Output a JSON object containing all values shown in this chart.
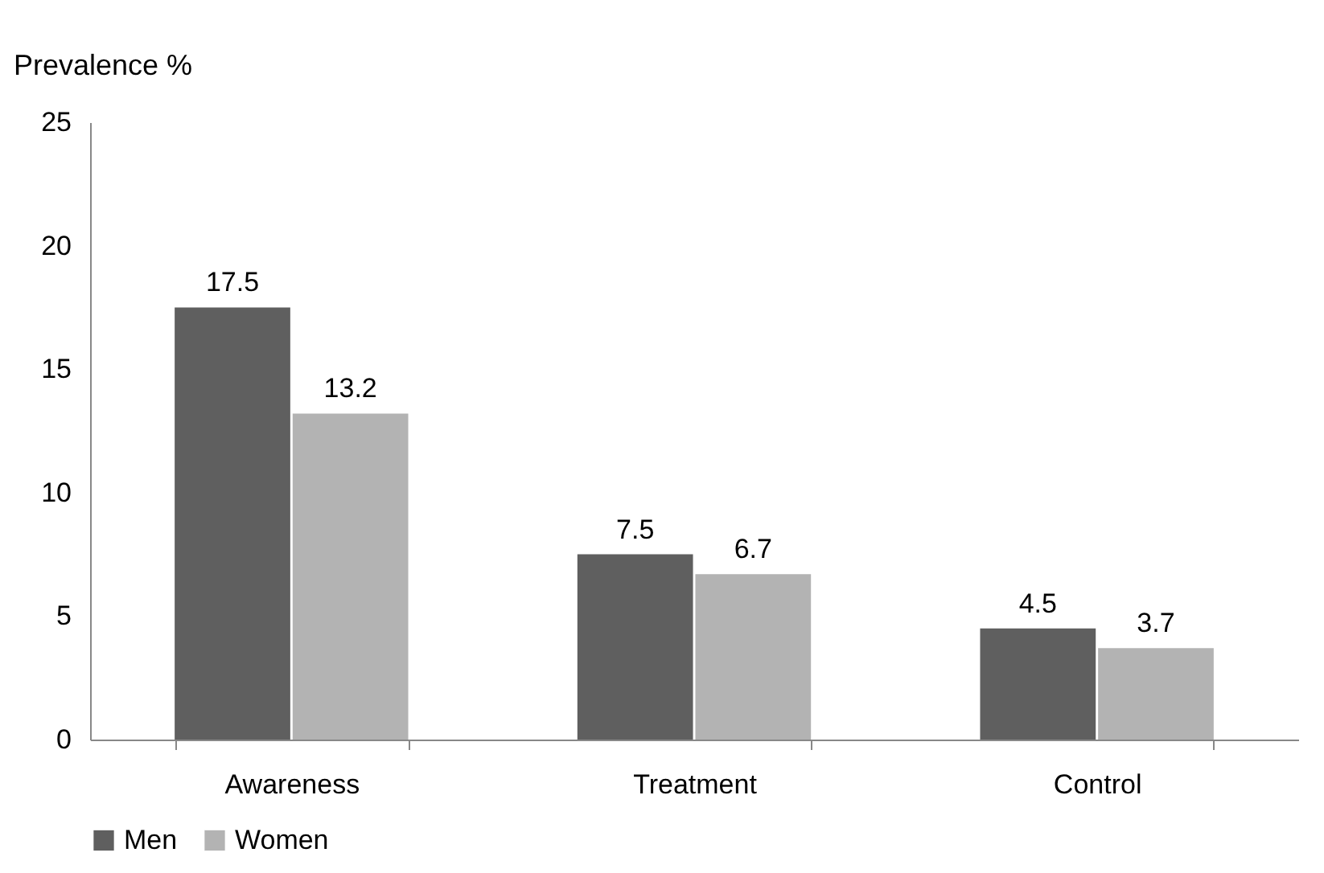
{
  "chart_data": {
    "type": "bar",
    "ylabel": "Prevalence %",
    "categories": [
      "Awareness",
      "Treatment",
      "Control"
    ],
    "series": [
      {
        "name": "Men",
        "color": "#5f5f5f",
        "values": [
          17.5,
          7.5,
          4.5
        ]
      },
      {
        "name": "Women",
        "color": "#b3b3b3",
        "values": [
          13.2,
          6.7,
          3.7
        ]
      }
    ],
    "ylim": [
      0,
      25
    ],
    "yticks": [
      0,
      5,
      10,
      15,
      20,
      25
    ],
    "grid": false,
    "legend": "bottom",
    "data_labels": true
  }
}
